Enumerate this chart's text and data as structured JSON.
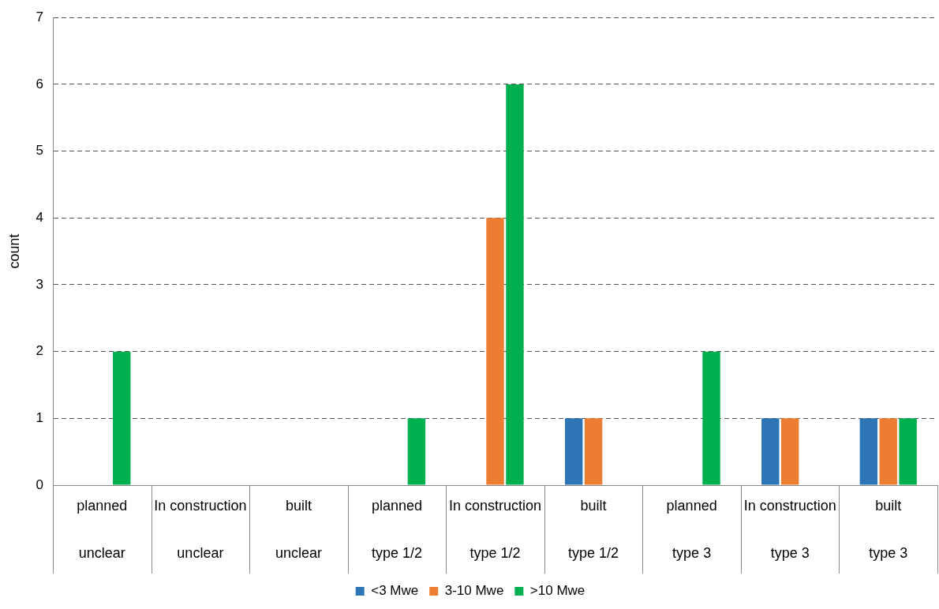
{
  "chart_data": {
    "type": "bar",
    "ylabel": "count",
    "categories": [
      "planned\nunclear",
      "In construction\nunclear",
      "built\nunclear",
      "planned\ntype 1/2",
      "In construction\ntype 1/2",
      "built\ntype 1/2",
      "planned\ntype 3",
      "In construction\ntype 3",
      "built\ntype 3"
    ],
    "series": [
      {
        "name": "<3 Mwe",
        "color": "#2e75b6",
        "values": [
          0,
          0,
          0,
          0,
          0,
          1,
          0,
          1,
          1
        ]
      },
      {
        "name": "3-10 Mwe",
        "color": "#ed7d31",
        "values": [
          0,
          0,
          0,
          0,
          4,
          1,
          0,
          1,
          1
        ]
      },
      {
        "name": ">10 Mwe",
        "color": "#00b050",
        "values": [
          2,
          0,
          0,
          1,
          6,
          0,
          2,
          0,
          1
        ]
      }
    ],
    "ylim": [
      0,
      7
    ],
    "yticks": [
      0,
      1,
      2,
      3,
      4,
      5,
      6,
      7
    ],
    "grid": "y",
    "legend": "bottom"
  }
}
